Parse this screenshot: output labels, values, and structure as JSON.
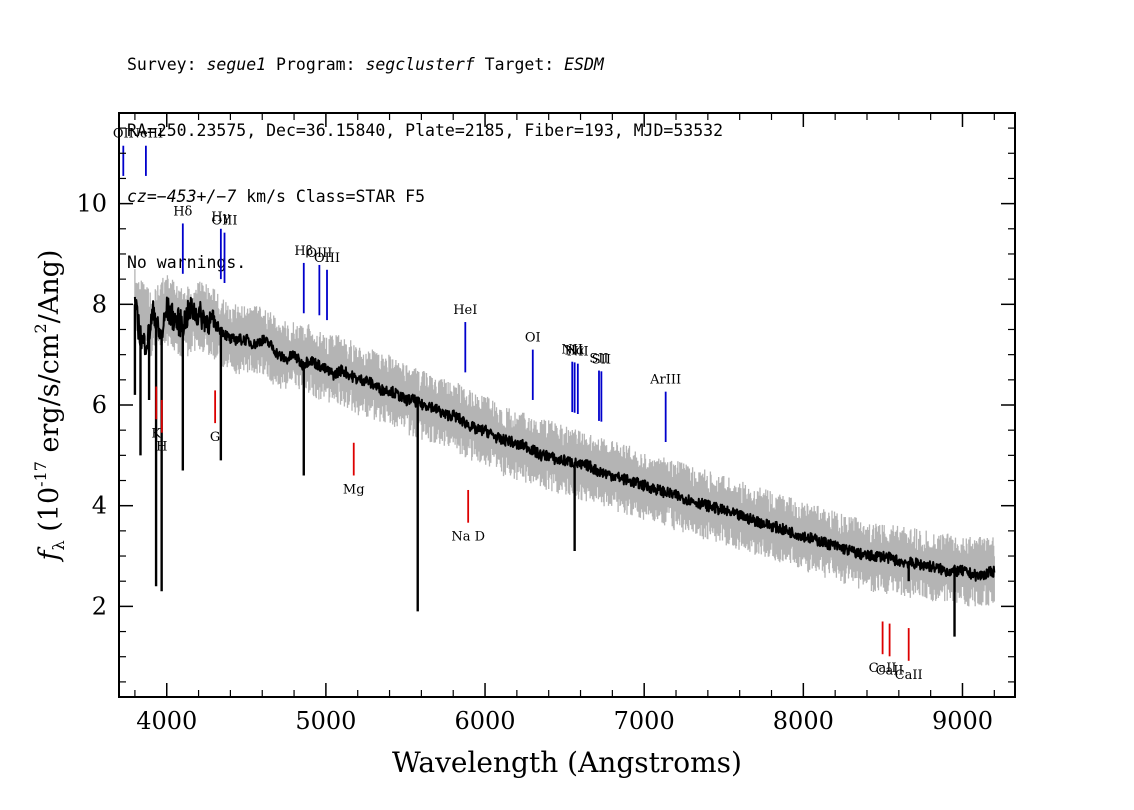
{
  "header": {
    "line1": {
      "survey_label": "Survey: ",
      "survey": "segue1",
      "program_label": " Program: ",
      "program": "segclusterf",
      "target_label": " Target: ",
      "target": "ESDM"
    },
    "line2": "RA=250.23575, Dec=36.15840, Plate=2185, Fiber=193, MJD=53532",
    "line3": {
      "cz": "cz=−453+/−7",
      "rest": " km/s Class=STAR F5"
    },
    "line4": "No warnings."
  },
  "chart_data": {
    "type": "line",
    "title": "",
    "xlabel": "Wavelength (Angstroms)",
    "ylabel": "f_λ (10^-17 erg/s/cm^2/Ang)",
    "xlim": [
      3700,
      9330
    ],
    "ylim": [
      0.2,
      11.8
    ],
    "xticks": [
      4000,
      5000,
      6000,
      7000,
      8000,
      9000
    ],
    "xtick_labels": [
      "4000",
      "5000",
      "6000",
      "7000",
      "8000",
      "9000"
    ],
    "yticks": [
      2,
      4,
      6,
      8,
      10
    ],
    "ytick_labels": [
      "2",
      "4",
      "6",
      "8",
      "10"
    ],
    "grid": false,
    "series": [
      {
        "name": "",
        "color": "#000000",
        "x": [
          3800,
          3820,
          3850,
          3880,
          3900,
          3920,
          3950,
          3970,
          4000,
          4050,
          4100,
          4150,
          4200,
          4250,
          4300,
          4340,
          4400,
          4450,
          4500,
          4550,
          4600,
          4650,
          4700,
          4750,
          4800,
          4850,
          4900,
          4950,
          5000,
          5050,
          5100,
          5150,
          5200,
          5250,
          5300,
          5350,
          5400,
          5450,
          5500,
          5550,
          5600,
          5650,
          5700,
          5750,
          5800,
          5850,
          5900,
          5950,
          6000,
          6050,
          6100,
          6150,
          6200,
          6250,
          6300,
          6350,
          6400,
          6450,
          6500,
          6560,
          6600,
          6650,
          6700,
          6750,
          6800,
          6850,
          6900,
          6950,
          7000,
          7100,
          7200,
          7300,
          7400,
          7500,
          7600,
          7700,
          7800,
          7900,
          8000,
          8100,
          8200,
          8300,
          8400,
          8500,
          8600,
          8700,
          8800,
          8900,
          9000,
          9100,
          9200
        ],
        "y": [
          8.0,
          7.6,
          7.2,
          7.3,
          7.6,
          7.9,
          7.4,
          7.4,
          7.9,
          7.7,
          7.6,
          7.9,
          7.8,
          7.7,
          7.6,
          7.5,
          7.3,
          7.3,
          7.3,
          7.2,
          7.3,
          7.2,
          7.0,
          6.9,
          7.0,
          6.8,
          6.9,
          6.8,
          6.7,
          6.6,
          6.7,
          6.6,
          6.5,
          6.5,
          6.4,
          6.3,
          6.3,
          6.2,
          6.1,
          6.1,
          6.0,
          6.0,
          5.9,
          5.8,
          5.8,
          5.7,
          5.6,
          5.5,
          5.5,
          5.4,
          5.3,
          5.3,
          5.2,
          5.2,
          5.1,
          5.0,
          5.0,
          4.9,
          4.9,
          4.85,
          4.8,
          4.8,
          4.7,
          4.65,
          4.6,
          4.55,
          4.5,
          4.45,
          4.4,
          4.3,
          4.2,
          4.1,
          4.0,
          3.9,
          3.8,
          3.7,
          3.6,
          3.5,
          3.4,
          3.3,
          3.2,
          3.1,
          3.0,
          3.0,
          2.9,
          2.85,
          2.8,
          2.7,
          2.7,
          2.6,
          2.7
        ]
      },
      {
        "name": "",
        "color": "#b4b4b4",
        "x": [
          3800,
          3900,
          4000,
          4100,
          4200,
          4300,
          4400,
          4500,
          4600,
          4700,
          4800,
          4900,
          5000,
          5100,
          5200,
          5300,
          5400,
          5500,
          5600,
          5700,
          5800,
          5900,
          6000,
          6100,
          6200,
          6300,
          6400,
          6500,
          6600,
          6700,
          6800,
          6900,
          7000,
          7200,
          7400,
          7600,
          7800,
          8000,
          8200,
          8400,
          8600,
          8800,
          9000,
          9200
        ],
        "y": [
          8.0,
          7.6,
          7.9,
          7.6,
          7.8,
          7.6,
          7.3,
          7.3,
          7.3,
          7.0,
          7.0,
          6.9,
          6.7,
          6.7,
          6.5,
          6.4,
          6.3,
          6.1,
          6.0,
          5.9,
          5.8,
          5.6,
          5.5,
          5.3,
          5.2,
          5.1,
          5.0,
          4.9,
          4.8,
          4.7,
          4.6,
          4.5,
          4.4,
          4.2,
          4.0,
          3.8,
          3.6,
          3.4,
          3.2,
          3.0,
          2.9,
          2.8,
          2.7,
          2.7
        ]
      }
    ],
    "absorption_features": [
      {
        "x": 3800,
        "y": 6.2
      },
      {
        "x": 3835,
        "y": 5.0
      },
      {
        "x": 3889,
        "y": 6.1
      },
      {
        "x": 3933,
        "y": 2.4
      },
      {
        "x": 3968,
        "y": 2.3
      },
      {
        "x": 4101,
        "y": 4.7
      },
      {
        "x": 4340,
        "y": 4.9
      },
      {
        "x": 4861,
        "y": 4.6
      },
      {
        "x": 5577,
        "y": 1.9
      },
      {
        "x": 6563,
        "y": 3.1
      },
      {
        "x": 8662,
        "y": 2.5
      },
      {
        "x": 8950,
        "y": 1.4
      }
    ],
    "emission_lines": [
      {
        "label": "OII",
        "x": 3727
      },
      {
        "label": "NeIII",
        "x": 3869
      },
      {
        "label": "Hδ",
        "x": 4101
      },
      {
        "label": "Hγ",
        "x": 4340
      },
      {
        "label": "OIII",
        "x": 4363
      },
      {
        "label": "Hβ",
        "x": 4861
      },
      {
        "label": "OIII",
        "x": 4959
      },
      {
        "label": "OIII",
        "x": 5007
      },
      {
        "label": "HeI",
        "x": 5876
      },
      {
        "label": "OI",
        "x": 6300
      },
      {
        "label": "NII",
        "x": 6548
      },
      {
        "label": "Hα",
        "x": 6563
      },
      {
        "label": "NII",
        "x": 6583
      },
      {
        "label": "SII",
        "x": 6716
      },
      {
        "label": "SII",
        "x": 6731
      },
      {
        "label": "ArIII",
        "x": 7135
      }
    ],
    "absorption_lines": [
      {
        "label": "K",
        "x": 3934
      },
      {
        "label": "H",
        "x": 3969
      },
      {
        "label": "G",
        "x": 4304
      },
      {
        "label": "Mg",
        "x": 5175
      },
      {
        "label": "Na D",
        "x": 5894
      },
      {
        "label": "CaII",
        "x": 8498
      },
      {
        "label": "CaII",
        "x": 8542
      },
      {
        "label": "CaII",
        "x": 8662
      }
    ],
    "colors": {
      "flux": "#000000",
      "error": "#b4b4b4",
      "emission": "#0000cc",
      "absorption": "#dd0000"
    }
  }
}
